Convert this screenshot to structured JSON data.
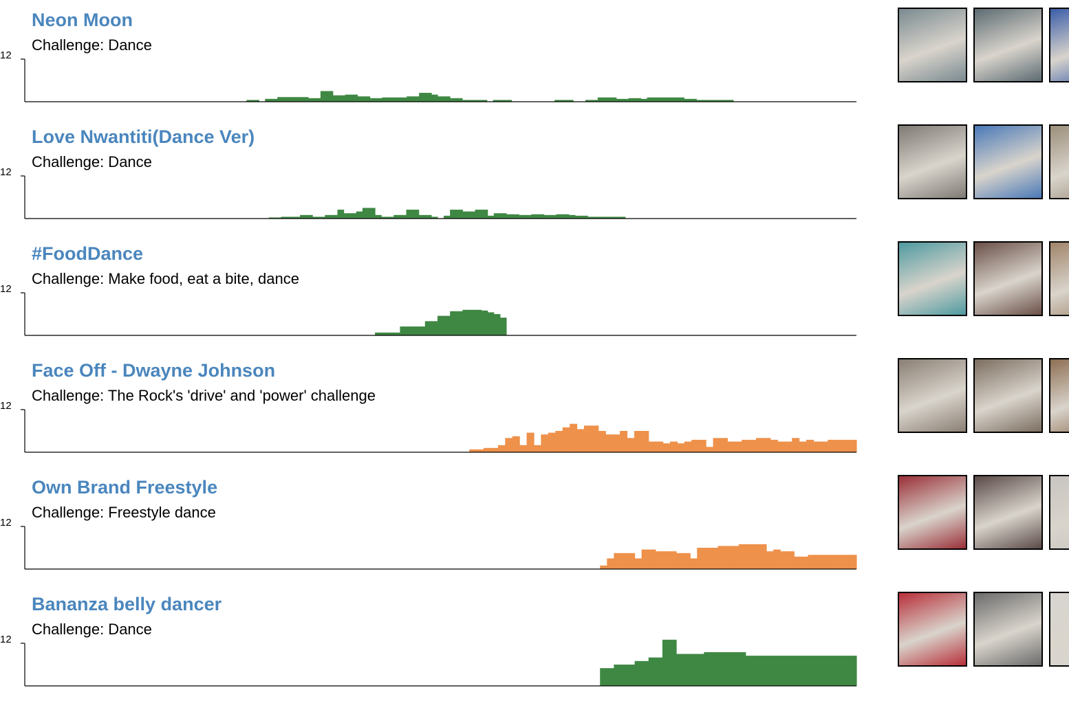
{
  "y_tick_label": "12",
  "chart_data": [
    {
      "type": "bar",
      "title": "Neon Moon",
      "subtitle": "Challenge: Dance",
      "color": "#3f8844",
      "series": [
        {
          "values": [
            0,
            0,
            0,
            0,
            0,
            0,
            0,
            0,
            0,
            0,
            0,
            0,
            0,
            0,
            0,
            0,
            0,
            0,
            0,
            0,
            0,
            0,
            0,
            0,
            0,
            0,
            0,
            0,
            0,
            0,
            0,
            0,
            0,
            0,
            0,
            0,
            0.5,
            0.5,
            0,
            0.8,
            0.8,
            1.3,
            1.3,
            1.3,
            1.3,
            1.3,
            1.0,
            1.0,
            3.0,
            3.0,
            1.8,
            1.8,
            2.0,
            2.0,
            1.5,
            1.5,
            1.0,
            1.0,
            1.2,
            1.2,
            1.2,
            1.2,
            1.5,
            1.5,
            2.5,
            2.5,
            2.0,
            1.5,
            1.5,
            1.0,
            1.0,
            0.5,
            0.5,
            0.5,
            0.5,
            0,
            0.5,
            0.5,
            0.5,
            0,
            0,
            0,
            0,
            0,
            0,
            0,
            0.5,
            0.5,
            0.5,
            0,
            0,
            0.5,
            0.5,
            1.2,
            1.2,
            1.2,
            0.8,
            0.8,
            1.0,
            1.0,
            0.8,
            1.2,
            1.2,
            1.2,
            1.2,
            1.2,
            1.2,
            0.8,
            0.8,
            0.5,
            0.5,
            0.5,
            0.5,
            0.5,
            0.5,
            0,
            0,
            0,
            0,
            0,
            0,
            0,
            0,
            0,
            0,
            0,
            0,
            0,
            0,
            0,
            0,
            0,
            0,
            0,
            0
          ]
        }
      ]
    },
    {
      "type": "bar",
      "title": "Love Nwantiti(Dance Ver)",
      "subtitle": "Challenge: Dance",
      "color": "#3f8844",
      "series": [
        {
          "values": [
            0,
            0,
            0,
            0,
            0,
            0,
            0,
            0,
            0,
            0,
            0,
            0,
            0,
            0,
            0,
            0,
            0,
            0,
            0,
            0,
            0,
            0,
            0,
            0,
            0,
            0,
            0,
            0,
            0,
            0,
            0,
            0,
            0,
            0,
            0,
            0,
            0,
            0,
            0,
            0.3,
            0.3,
            0.5,
            0.5,
            0.5,
            1.0,
            1.0,
            0.5,
            0.5,
            1.0,
            1.0,
            2.5,
            1.5,
            1.5,
            2.0,
            3.0,
            3.0,
            1.0,
            0.5,
            0.5,
            1.0,
            1.0,
            2.5,
            2.5,
            1.0,
            1.0,
            0.5,
            0,
            0.8,
            2.5,
            2.5,
            2.0,
            2.0,
            2.5,
            2.5,
            0.8,
            1.5,
            1.5,
            1.2,
            1.2,
            1.0,
            1.0,
            1.2,
            1.2,
            1.0,
            1.0,
            1.2,
            1.2,
            1.0,
            0.8,
            0.8,
            0.5,
            0.5,
            0.5,
            0.5,
            0.5,
            0.5,
            0,
            0,
            0,
            0,
            0,
            0,
            0,
            0,
            0,
            0,
            0,
            0,
            0,
            0,
            0,
            0,
            0,
            0,
            0,
            0,
            0,
            0,
            0,
            0,
            0,
            0,
            0,
            0,
            0,
            0,
            0,
            0,
            0,
            0,
            0,
            0,
            0
          ]
        }
      ]
    },
    {
      "type": "bar",
      "title": "#FoodDance",
      "subtitle": "Challenge: Make food, eat a bite, dance",
      "color": "#3f8844",
      "series": [
        {
          "values": [
            0,
            0,
            0,
            0,
            0,
            0,
            0,
            0,
            0,
            0,
            0,
            0,
            0,
            0,
            0,
            0,
            0,
            0,
            0,
            0,
            0,
            0,
            0,
            0,
            0,
            0,
            0,
            0,
            0,
            0,
            0,
            0,
            0,
            0,
            0,
            0,
            0,
            0,
            0,
            0,
            0,
            0,
            0,
            0,
            0,
            0,
            0,
            0,
            0,
            0,
            0,
            0,
            0,
            0,
            0,
            0,
            0.8,
            0.8,
            0.8,
            0.8,
            2.5,
            2.5,
            2.5,
            2.5,
            4.0,
            4.0,
            5.5,
            5.5,
            6.8,
            6.8,
            7.2,
            7.2,
            7.2,
            7.0,
            6.5,
            6.0,
            5.0,
            0,
            0,
            0,
            0,
            0,
            0,
            0,
            0,
            0,
            0,
            0,
            0,
            0,
            0,
            0,
            0,
            0,
            0,
            0,
            0,
            0,
            0,
            0,
            0,
            0,
            0,
            0,
            0,
            0,
            0,
            0,
            0,
            0,
            0,
            0,
            0,
            0,
            0,
            0,
            0,
            0,
            0,
            0,
            0,
            0,
            0,
            0,
            0,
            0,
            0,
            0,
            0,
            0,
            0,
            0,
            0
          ]
        }
      ]
    },
    {
      "type": "bar",
      "title": "Face Off - Dwayne Johnson",
      "subtitle": "Challenge: The Rock's 'drive' and 'power' challenge",
      "color": "#ee914b",
      "series": [
        {
          "values": [
            0,
            0,
            0,
            0,
            0,
            0,
            0,
            0,
            0,
            0,
            0,
            0,
            0,
            0,
            0,
            0,
            0,
            0,
            0,
            0,
            0,
            0,
            0,
            0,
            0,
            0,
            0,
            0,
            0,
            0,
            0,
            0,
            0,
            0,
            0,
            0,
            0,
            0,
            0,
            0,
            0,
            0,
            0,
            0,
            0,
            0,
            0,
            0,
            0,
            0,
            0,
            0,
            0,
            0,
            0,
            0,
            0,
            0,
            0,
            0,
            0,
            0,
            0.8,
            0.8,
            1.2,
            1.2,
            2.0,
            4.0,
            4.5,
            2.0,
            5.5,
            2.0,
            5.0,
            5.5,
            6.0,
            7.0,
            8.0,
            6.5,
            7.5,
            7.5,
            6.0,
            5.0,
            5.0,
            6.0,
            4.0,
            6.0,
            6.0,
            3.0,
            3.0,
            2.5,
            3.0,
            2.5,
            3.0,
            3.5,
            3.5,
            1.5,
            4.0,
            4.0,
            3.0,
            3.0,
            3.5,
            3.5,
            4.0,
            4.0,
            3.5,
            3.0,
            3.0,
            4.0,
            3.0,
            3.5,
            3.0,
            3.0,
            3.5,
            3.5,
            3.5,
            3.5
          ]
        }
      ]
    },
    {
      "type": "bar",
      "title": "Own Brand Freestyle",
      "subtitle": "Challenge: Freestyle dance",
      "color": "#ee914b",
      "series": [
        {
          "values": [
            0,
            0,
            0,
            0,
            0,
            0,
            0,
            0,
            0,
            0,
            0,
            0,
            0,
            0,
            0,
            0,
            0,
            0,
            0,
            0,
            0,
            0,
            0,
            0,
            0,
            0,
            0,
            0,
            0,
            0,
            0,
            0,
            0,
            0,
            0,
            0,
            0,
            0,
            0,
            0,
            0,
            0,
            0,
            0,
            0,
            0,
            0,
            0,
            0,
            0,
            0,
            0,
            0,
            0,
            0,
            0,
            0,
            0,
            0,
            0,
            0,
            0,
            0,
            0,
            0,
            0,
            0,
            0,
            0,
            0,
            0,
            0,
            0,
            0,
            0,
            0,
            0,
            0,
            0,
            0,
            0,
            0,
            0,
            1.0,
            3.0,
            4.5,
            4.5,
            4.5,
            3.0,
            5.5,
            5.5,
            5.0,
            5.0,
            5.0,
            4.5,
            4.5,
            3.0,
            6.0,
            6.0,
            6.0,
            6.5,
            6.5,
            6.5,
            7.0,
            7.0,
            7.0,
            7.0,
            5.0,
            5.5,
            5.0,
            5.0,
            3.5,
            3.5,
            4.0,
            4.0,
            4.0,
            4.0,
            4.0,
            4.0,
            4.0
          ]
        }
      ]
    },
    {
      "type": "bar",
      "title": "Bananza belly dancer",
      "subtitle": "Challenge: Dance",
      "color": "#3f8844",
      "series": [
        {
          "values": [
            0,
            0,
            0,
            0,
            0,
            0,
            0,
            0,
            0,
            0,
            0,
            0,
            0,
            0,
            0,
            0,
            0,
            0,
            0,
            0,
            0,
            0,
            0,
            0,
            0,
            0,
            0,
            0,
            0,
            0,
            0,
            0,
            0,
            0,
            0,
            0,
            0,
            0,
            0,
            0,
            0,
            0,
            0,
            0,
            0,
            0,
            0,
            0,
            0,
            0,
            0,
            0,
            0,
            0,
            0,
            0,
            0,
            0,
            0,
            0,
            0,
            0,
            0,
            0,
            0,
            0,
            0,
            0,
            0,
            0,
            0,
            0,
            0,
            0,
            0,
            0,
            0,
            0,
            0,
            0,
            0,
            0,
            0,
            5.0,
            5.0,
            6.0,
            6.0,
            6.0,
            7.0,
            7.0,
            8.0,
            8.0,
            13.0,
            13.0,
            9.0,
            9.0,
            9.0,
            9.0,
            9.5,
            9.5,
            9.5,
            9.5,
            9.5,
            9.5,
            8.5,
            8.5,
            8.5,
            8.5,
            8.5,
            8.5,
            8.5,
            8.5,
            8.5,
            8.5,
            8.5,
            8.5,
            8.5,
            8.5,
            8.5,
            8.5
          ]
        }
      ]
    }
  ],
  "thumbnails": [
    [
      {
        "icon": "video-thumb",
        "color": "#7a8a90"
      },
      {
        "icon": "video-thumb",
        "color": "#5c6b72"
      },
      {
        "icon": "video-thumb",
        "color": "#3a5da8"
      }
    ],
    [
      {
        "icon": "video-thumb",
        "color": "#7e7a74"
      },
      {
        "icon": "video-thumb",
        "color": "#4a79b8"
      },
      {
        "icon": "video-thumb",
        "color": "#9c8f7b"
      }
    ],
    [
      {
        "icon": "video-thumb",
        "color": "#4f9aa0"
      },
      {
        "icon": "video-thumb",
        "color": "#6a5048"
      },
      {
        "icon": "video-thumb",
        "color": "#a0846a"
      }
    ],
    [
      {
        "icon": "video-thumb",
        "color": "#8a7f74"
      },
      {
        "icon": "video-thumb",
        "color": "#7c6e60"
      },
      {
        "icon": "video-thumb",
        "color": "#8d6e52"
      }
    ],
    [
      {
        "icon": "video-thumb",
        "color": "#9a3038"
      },
      {
        "icon": "video-thumb",
        "color": "#5a4a48"
      },
      {
        "icon": "video-thumb",
        "color": "#c8c4c0"
      }
    ],
    [
      {
        "icon": "video-thumb",
        "color": "#b8303a"
      },
      {
        "icon": "video-thumb",
        "color": "#6b6b6b"
      },
      {
        "icon": "video-thumb",
        "color": "#d8d4d0"
      }
    ]
  ]
}
